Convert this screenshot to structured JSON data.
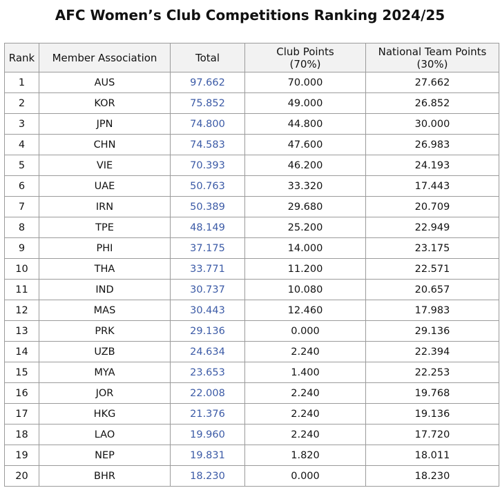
{
  "header": {
    "title": "AFC Women’s Club Competitions Ranking 2024/25"
  },
  "table": {
    "columns": [
      "Rank",
      "Member Association",
      "Total",
      "Club Points\n(70%)",
      "National Team Points\n(30%)"
    ],
    "rows": [
      [
        "1",
        "AUS",
        "97.662",
        "70.000",
        "27.662"
      ],
      [
        "2",
        "KOR",
        "75.852",
        "49.000",
        "26.852"
      ],
      [
        "3",
        "JPN",
        "74.800",
        "44.800",
        "30.000"
      ],
      [
        "4",
        "CHN",
        "74.583",
        "47.600",
        "26.983"
      ],
      [
        "5",
        "VIE",
        "70.393",
        "46.200",
        "24.193"
      ],
      [
        "6",
        "UAE",
        "50.763",
        "33.320",
        "17.443"
      ],
      [
        "7",
        "IRN",
        "50.389",
        "29.680",
        "20.709"
      ],
      [
        "8",
        "TPE",
        "48.149",
        "25.200",
        "22.949"
      ],
      [
        "9",
        "PHI",
        "37.175",
        "14.000",
        "23.175"
      ],
      [
        "10",
        "THA",
        "33.771",
        "11.200",
        "22.571"
      ],
      [
        "11",
        "IND",
        "30.737",
        "10.080",
        "20.657"
      ],
      [
        "12",
        "MAS",
        "30.443",
        "12.460",
        "17.983"
      ],
      [
        "13",
        "PRK",
        "29.136",
        "0.000",
        "29.136"
      ],
      [
        "14",
        "UZB",
        "24.634",
        "2.240",
        "22.394"
      ],
      [
        "15",
        "MYA",
        "23.653",
        "1.400",
        "22.253"
      ],
      [
        "16",
        "JOR",
        "22.008",
        "2.240",
        "19.768"
      ],
      [
        "17",
        "HKG",
        "21.376",
        "2.240",
        "19.136"
      ],
      [
        "18",
        "LAO",
        "19.960",
        "2.240",
        "17.720"
      ],
      [
        "19",
        "NEP",
        "19.831",
        "1.820",
        "18.011"
      ],
      [
        "20",
        "BHR",
        "18.230",
        "0.000",
        "18.230"
      ]
    ]
  }
}
